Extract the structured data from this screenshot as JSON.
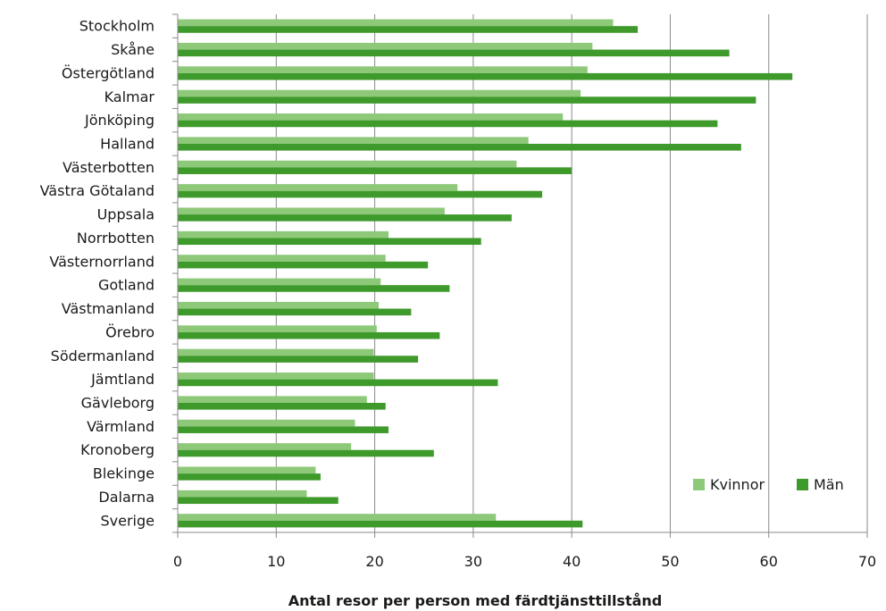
{
  "chart_data": {
    "type": "bar",
    "orientation": "horizontal",
    "categories": [
      "Stockholm",
      "Skåne",
      "Östergötland",
      "Kalmar",
      "Jönköping",
      "Halland",
      "Västerbotten",
      "Västra Götaland",
      "Uppsala",
      "Norrbotten",
      "Västernorrland",
      "Gotland",
      "Västmanland",
      "Örebro",
      "Södermanland",
      "Jämtland",
      "Gävleborg",
      "Värmland",
      "Kronoberg",
      "Blekinge",
      "Dalarna",
      "Sverige"
    ],
    "series": [
      {
        "name": "Kvinnor",
        "color": "#8ec97a",
        "values": [
          44.2,
          42.1,
          41.6,
          40.9,
          39.1,
          35.6,
          34.4,
          28.4,
          27.1,
          21.4,
          21.1,
          20.6,
          20.4,
          20.2,
          19.9,
          19.9,
          19.2,
          18.0,
          17.6,
          14.0,
          13.1,
          32.3
        ]
      },
      {
        "name": "Män",
        "color": "#3f9a2c",
        "values": [
          46.7,
          56.0,
          62.4,
          58.7,
          54.8,
          57.2,
          40.0,
          37.0,
          33.9,
          30.8,
          25.4,
          27.6,
          23.7,
          26.6,
          24.4,
          32.5,
          21.1,
          21.4,
          26.0,
          14.5,
          16.3,
          41.1
        ]
      }
    ],
    "xlim": [
      0,
      70
    ],
    "xticks": [
      0,
      10,
      20,
      30,
      40,
      50,
      60,
      70
    ],
    "xlabel": "Antal resor per person med färdtjänsttillstånd",
    "grid": "vertical",
    "legend_position": "bottom-right"
  }
}
